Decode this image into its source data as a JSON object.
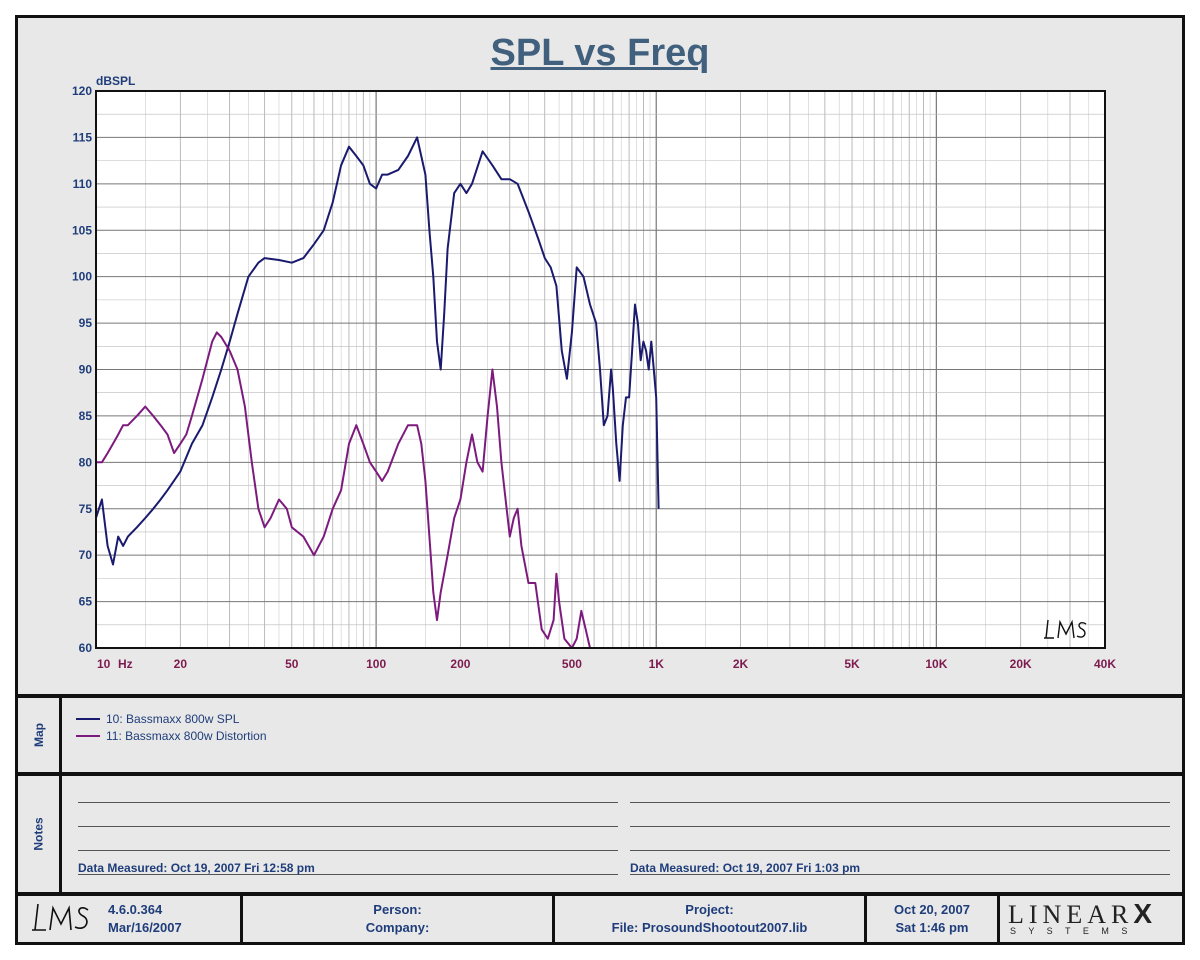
{
  "chart_data": {
    "type": "line",
    "title": "SPL vs Freq",
    "ylabel": "dBSPL",
    "xscale": "log",
    "xlim": [
      10,
      40000
    ],
    "ylim": [
      60,
      120
    ],
    "y_ticks": [
      60,
      65,
      70,
      75,
      80,
      85,
      90,
      95,
      100,
      105,
      110,
      115,
      120
    ],
    "x_ticks": [
      {
        "value": 10,
        "label": "10"
      },
      {
        "value": 20,
        "label": "20"
      },
      {
        "value": 50,
        "label": "50"
      },
      {
        "value": 100,
        "label": "100"
      },
      {
        "value": 200,
        "label": "200"
      },
      {
        "value": 500,
        "label": "500"
      },
      {
        "value": 1000,
        "label": "1K"
      },
      {
        "value": 2000,
        "label": "2K"
      },
      {
        "value": 5000,
        "label": "5K"
      },
      {
        "value": 10000,
        "label": "10K"
      },
      {
        "value": 20000,
        "label": "20K"
      },
      {
        "value": 40000,
        "label": "40K"
      }
    ],
    "x_unit_label": "Hz",
    "grid": true,
    "series": [
      {
        "name": "10: Bassmaxx 800w SPL",
        "color": "#1a1a6e",
        "points": [
          [
            10,
            74
          ],
          [
            10.5,
            76
          ],
          [
            11,
            71
          ],
          [
            11.5,
            69
          ],
          [
            12,
            72
          ],
          [
            12.5,
            71
          ],
          [
            13,
            72
          ],
          [
            14,
            73
          ],
          [
            15,
            74
          ],
          [
            16,
            75
          ],
          [
            17,
            76
          ],
          [
            18,
            77
          ],
          [
            20,
            79
          ],
          [
            22,
            82
          ],
          [
            24,
            84
          ],
          [
            26,
            87
          ],
          [
            28,
            90
          ],
          [
            30,
            93
          ],
          [
            32,
            96
          ],
          [
            35,
            100
          ],
          [
            38,
            101.5
          ],
          [
            40,
            102
          ],
          [
            45,
            101.8
          ],
          [
            50,
            101.5
          ],
          [
            55,
            102
          ],
          [
            60,
            103.5
          ],
          [
            65,
            105
          ],
          [
            70,
            108
          ],
          [
            75,
            112
          ],
          [
            80,
            114
          ],
          [
            85,
            113
          ],
          [
            90,
            112
          ],
          [
            95,
            110
          ],
          [
            100,
            109.5
          ],
          [
            105,
            111
          ],
          [
            110,
            111
          ],
          [
            120,
            111.5
          ],
          [
            130,
            113
          ],
          [
            140,
            115
          ],
          [
            150,
            111
          ],
          [
            155,
            105
          ],
          [
            160,
            100
          ],
          [
            165,
            93
          ],
          [
            170,
            90
          ],
          [
            175,
            96
          ],
          [
            180,
            103
          ],
          [
            190,
            109
          ],
          [
            200,
            110
          ],
          [
            210,
            109
          ],
          [
            220,
            110
          ],
          [
            240,
            113.5
          ],
          [
            260,
            112
          ],
          [
            280,
            110.5
          ],
          [
            300,
            110.5
          ],
          [
            320,
            110
          ],
          [
            350,
            107
          ],
          [
            380,
            104
          ],
          [
            400,
            102
          ],
          [
            420,
            101
          ],
          [
            440,
            99
          ],
          [
            460,
            92
          ],
          [
            480,
            89
          ],
          [
            500,
            94
          ],
          [
            520,
            101
          ],
          [
            550,
            100
          ],
          [
            580,
            97
          ],
          [
            610,
            95
          ],
          [
            630,
            90
          ],
          [
            650,
            84
          ],
          [
            670,
            85
          ],
          [
            690,
            90
          ],
          [
            700,
            88
          ],
          [
            720,
            82
          ],
          [
            740,
            78
          ],
          [
            760,
            84
          ],
          [
            780,
            87
          ],
          [
            800,
            87
          ],
          [
            820,
            92
          ],
          [
            840,
            97
          ],
          [
            860,
            95
          ],
          [
            880,
            91
          ],
          [
            900,
            93
          ],
          [
            920,
            92
          ],
          [
            940,
            90
          ],
          [
            960,
            93
          ],
          [
            980,
            90
          ],
          [
            1000,
            87
          ],
          [
            1020,
            75
          ]
        ]
      },
      {
        "name": "11: Bassmaxx 800w Distortion",
        "color": "#7d1a7e",
        "points": [
          [
            10,
            80
          ],
          [
            10.5,
            80
          ],
          [
            11,
            81
          ],
          [
            11.5,
            82
          ],
          [
            12,
            83
          ],
          [
            12.5,
            84
          ],
          [
            13,
            84
          ],
          [
            14,
            85
          ],
          [
            15,
            86
          ],
          [
            16,
            85
          ],
          [
            17,
            84
          ],
          [
            18,
            83
          ],
          [
            19,
            81
          ],
          [
            20,
            82
          ],
          [
            21,
            83
          ],
          [
            22,
            85
          ],
          [
            24,
            89
          ],
          [
            26,
            93
          ],
          [
            27,
            94
          ],
          [
            28,
            93.5
          ],
          [
            30,
            92
          ],
          [
            32,
            90
          ],
          [
            34,
            86
          ],
          [
            36,
            80
          ],
          [
            38,
            75
          ],
          [
            40,
            73
          ],
          [
            42,
            74
          ],
          [
            45,
            76
          ],
          [
            48,
            75
          ],
          [
            50,
            73
          ],
          [
            55,
            72
          ],
          [
            60,
            70
          ],
          [
            65,
            72
          ],
          [
            70,
            75
          ],
          [
            75,
            77
          ],
          [
            80,
            82
          ],
          [
            85,
            84
          ],
          [
            90,
            82
          ],
          [
            95,
            80
          ],
          [
            100,
            79
          ],
          [
            105,
            78
          ],
          [
            110,
            79
          ],
          [
            120,
            82
          ],
          [
            130,
            84
          ],
          [
            140,
            84
          ],
          [
            145,
            82
          ],
          [
            150,
            78
          ],
          [
            155,
            72
          ],
          [
            160,
            66
          ],
          [
            165,
            63
          ],
          [
            170,
            66
          ],
          [
            180,
            70
          ],
          [
            190,
            74
          ],
          [
            200,
            76
          ],
          [
            210,
            80
          ],
          [
            220,
            83
          ],
          [
            230,
            80
          ],
          [
            240,
            79
          ],
          [
            250,
            85
          ],
          [
            260,
            90
          ],
          [
            270,
            86
          ],
          [
            280,
            80
          ],
          [
            290,
            76
          ],
          [
            300,
            72
          ],
          [
            310,
            74
          ],
          [
            320,
            75
          ],
          [
            330,
            71
          ],
          [
            350,
            67
          ],
          [
            370,
            67
          ],
          [
            390,
            62
          ],
          [
            410,
            61
          ],
          [
            430,
            63
          ],
          [
            440,
            68
          ],
          [
            450,
            65
          ],
          [
            470,
            61
          ],
          [
            500,
            60
          ],
          [
            520,
            61
          ],
          [
            540,
            64
          ],
          [
            560,
            62
          ],
          [
            580,
            60
          ],
          [
            600,
            60
          ],
          [
            640,
            60
          ],
          [
            680,
            60
          ]
        ]
      }
    ]
  },
  "map": {
    "label": "Map",
    "entries": [
      {
        "text": "10: Bassmaxx 800w SPL",
        "color": "#1a1a6e"
      },
      {
        "text": "11: Bassmaxx 800w Distortion",
        "color": "#7d1a7e"
      }
    ]
  },
  "notes": {
    "label": "Notes",
    "left": "Data Measured: Oct 19, 2007  Fri 12:58 pm",
    "right": "Data Measured: Oct 19, 2007  Fri  1:03 pm"
  },
  "footer": {
    "version": "4.6.0.364",
    "version_date": "Mar/16/2007",
    "person": "Person:",
    "company": "Company:",
    "project": "Project:",
    "file": "File: ProsoundShootout2007.lib",
    "date": "Oct 20, 2007",
    "time": "Sat  1:46 pm",
    "brand": "LINEAR",
    "brand_x": "X",
    "brand_sub": "S Y S T E M S",
    "logo": "LMS"
  }
}
